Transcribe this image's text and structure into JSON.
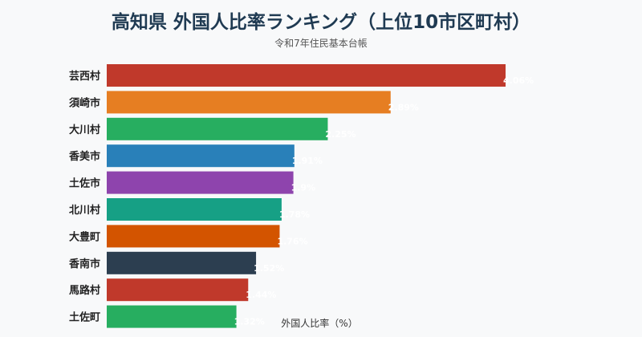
{
  "title": "高知県 外国人比率ランキング（上位10市区町村）",
  "subtitle": "令和7年住民基本台帳",
  "chart_data": {
    "type": "bar",
    "orientation": "horizontal",
    "title": "高知県 外国人比率ランキング（上位10市区町村）",
    "subtitle": "令和7年住民基本台帳",
    "xlabel": "外国人比率（%）",
    "ylabel": "",
    "categories": [
      "芸西村",
      "須崎市",
      "大川村",
      "香美市",
      "土佐市",
      "北川村",
      "大豊町",
      "香南市",
      "馬路村",
      "土佐町"
    ],
    "values": [
      4.06,
      2.89,
      2.25,
      1.91,
      1.9,
      1.78,
      1.76,
      1.52,
      1.44,
      1.32
    ],
    "value_labels": [
      "4.06%",
      "2.89%",
      "2.25%",
      "1.91%",
      "1.9%",
      "1.78%",
      "1.76%",
      "1.52%",
      "1.44%",
      "1.32%"
    ],
    "xlim": [
      0,
      4.25
    ],
    "grid": false,
    "colors": [
      "#c0392b",
      "#e67e22",
      "#27ae60",
      "#2980b9",
      "#8e44ad",
      "#16a085",
      "#d35400",
      "#2c3e50",
      "#c0392b",
      "#27ae60"
    ]
  }
}
